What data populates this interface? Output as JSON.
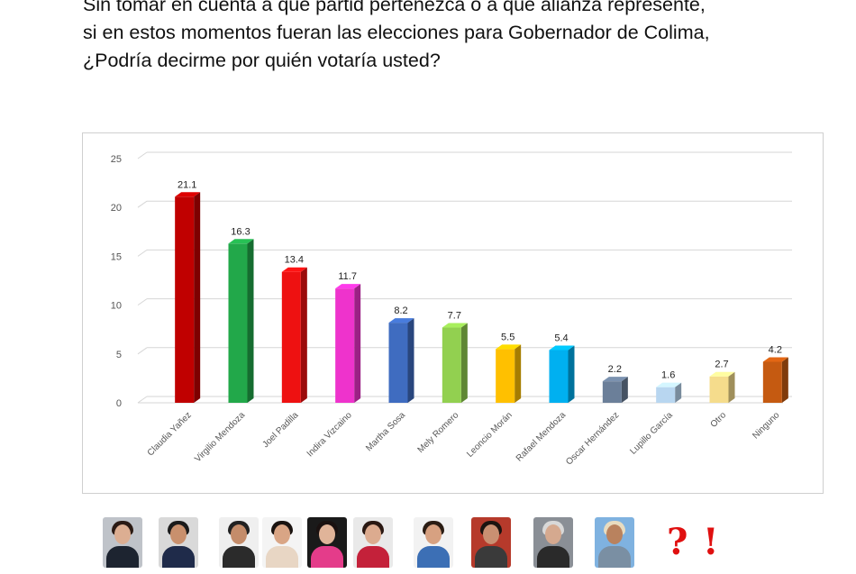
{
  "header": {
    "title_lines": [
      "Sin tomar en cuenta a que partid pertenezca o a que alianza represente,",
      "si en estos momentos fueran las elecciones para Gobernador de Colima,",
      "¿Podría decirme por quién votaría usted?"
    ]
  },
  "chart_data": {
    "type": "bar",
    "categories": [
      "Claudia Yañez",
      "Virgilio Mendoza",
      "Joel Padilla",
      "Indira Vizcaino",
      "Martha Sosa",
      "Mely Romero",
      "Leoncio Morán",
      "Rafael Mendoza",
      "Oscar Hernández",
      "Lupillo García",
      "Otro",
      "Ninguno"
    ],
    "values": [
      21.1,
      16.3,
      13.4,
      11.7,
      8.2,
      7.7,
      5.5,
      5.4,
      2.2,
      1.6,
      2.7,
      4.2
    ],
    "value_labels": [
      "21.1",
      "16.3",
      "13.4",
      "11.7",
      "8.2",
      "7.7",
      "5.5",
      "5.4",
      "2.2",
      "1.6",
      "2.7",
      "4.2"
    ],
    "colors": [
      "#c00000",
      "#22a84a",
      "#ee1111",
      "#ee33cc",
      "#3f6cc0",
      "#92d050",
      "#ffc000",
      "#00b0f0",
      "#6b7f99",
      "#b8d6f0",
      "#f5dc8c",
      "#c55a11"
    ],
    "yticks": [
      "0",
      "5",
      "10",
      "15",
      "20",
      "25"
    ],
    "ylim": [
      0,
      25
    ],
    "grid": true,
    "legend": "none",
    "title": "",
    "xlabel": "",
    "ylabel": ""
  },
  "photos": [
    {
      "name": "photo-claudia-yanez",
      "bg": "#bfc3c9",
      "hair": "#2a1a14",
      "body": "#1d2430",
      "skin": "#dcae92"
    },
    {
      "name": "photo-virgilio-mendoza",
      "bg": "#d9d9d9",
      "hair": "#1b1b1b",
      "body": "#1f2b4a",
      "skin": "#c9906d"
    },
    {
      "name": "photo-joel-padilla",
      "bg": "#efefef",
      "hair": "#222222",
      "body": "#2b2b2b",
      "skin": "#c48c6a"
    },
    {
      "name": "photo-indira-vizcaino",
      "bg": "#f4f4f4",
      "hair": "#1a1310",
      "body": "#e8d6c4",
      "skin": "#d9a585"
    },
    {
      "name": "photo-martha-sosa",
      "bg": "#1a1a1a",
      "hair": "#1a1110",
      "body": "#e43c8a",
      "skin": "#e0b499"
    },
    {
      "name": "photo-mely-romero",
      "bg": "#e9e9e9",
      "hair": "#2a1812",
      "body": "#c4213a",
      "skin": "#dcab8f"
    },
    {
      "name": "photo-leoncio-moran",
      "bg": "#f2f2f2",
      "hair": "#2b1d14",
      "body": "#3c6fb5",
      "skin": "#d7a181"
    },
    {
      "name": "photo-rafael-mendoza",
      "bg": "#b63a2b",
      "hair": "#1c1410",
      "body": "#3a3a3a",
      "skin": "#c99072"
    },
    {
      "name": "photo-oscar-hernandez",
      "bg": "#8a8f96",
      "hair": "#d8d8d8",
      "body": "#2a2a2a",
      "skin": "#d5a98f"
    },
    {
      "name": "photo-lupillo-garcia",
      "bg": "#7fb2e0",
      "hair": "#e8dcc0",
      "body": "#7a8fa3",
      "skin": "#b9825e"
    }
  ],
  "symbols": [
    {
      "name": "question-mark-icon",
      "glyph": "?"
    },
    {
      "name": "exclamation-mark-icon",
      "glyph": "!"
    }
  ]
}
